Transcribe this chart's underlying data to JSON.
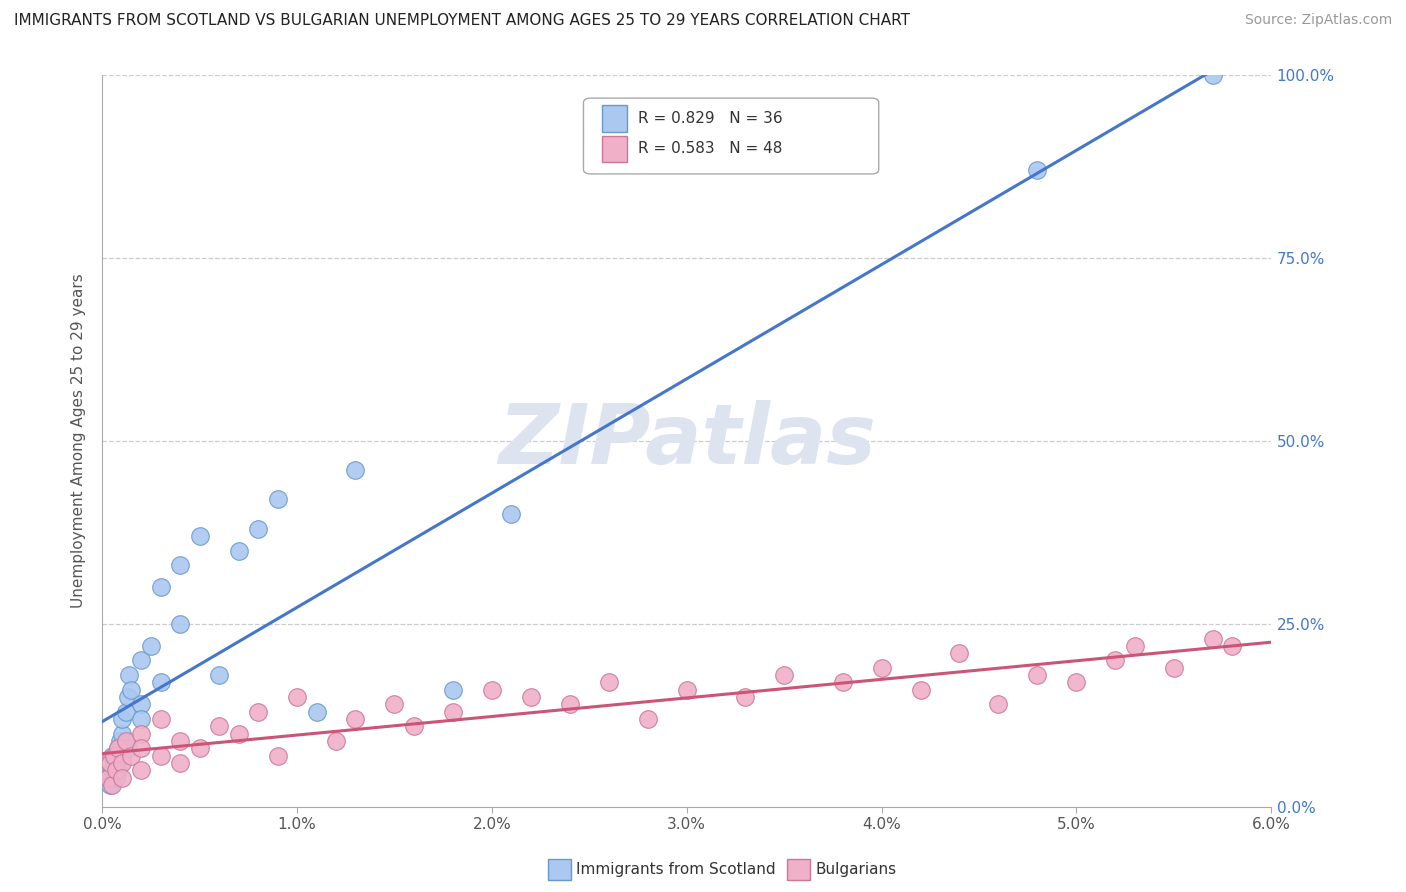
{
  "title": "IMMIGRANTS FROM SCOTLAND VS BULGARIAN UNEMPLOYMENT AMONG AGES 25 TO 29 YEARS CORRELATION CHART",
  "source": "Source: ZipAtlas.com",
  "ylabel": "Unemployment Among Ages 25 to 29 years",
  "xlim": [
    0.0,
    0.06
  ],
  "ylim": [
    0.0,
    1.0
  ],
  "xtick_vals": [
    0.0,
    0.01,
    0.02,
    0.03,
    0.04,
    0.05,
    0.06
  ],
  "xtick_labels": [
    "0.0%",
    "1.0%",
    "2.0%",
    "3.0%",
    "4.0%",
    "5.0%",
    "6.0%"
  ],
  "ytick_vals": [
    0.0,
    0.25,
    0.5,
    0.75,
    1.0
  ],
  "ytick_labels": [
    "0.0%",
    "25.0%",
    "50.0%",
    "75.0%",
    "100.0%"
  ],
  "series1_color": "#aac8f0",
  "series1_edge": "#6699cc",
  "series2_color": "#f0b0c8",
  "series2_edge": "#cc7799",
  "line1_color": "#4477cc",
  "line2_color": "#cc5577",
  "watermark": "ZIPatlas",
  "watermark_color": "#dde4f0",
  "legend1_label": "R = 0.829   N = 36",
  "legend2_label": "R = 0.583   N = 48",
  "legend_label1": "Immigrants from Scotland",
  "legend_label2": "Bulgarians",
  "scotland_x": [
    0.0003,
    0.0004,
    0.0005,
    0.0005,
    0.0006,
    0.0007,
    0.0008,
    0.0008,
    0.0009,
    0.001,
    0.001,
    0.001,
    0.0012,
    0.0013,
    0.0013,
    0.0014,
    0.0015,
    0.002,
    0.002,
    0.002,
    0.0025,
    0.003,
    0.003,
    0.004,
    0.004,
    0.005,
    0.006,
    0.007,
    0.008,
    0.009,
    0.011,
    0.013,
    0.018,
    0.021,
    0.048,
    0.057
  ],
  "scotland_y": [
    0.04,
    0.03,
    0.05,
    0.07,
    0.06,
    0.04,
    0.08,
    0.05,
    0.09,
    0.07,
    0.1,
    0.12,
    0.13,
    0.08,
    0.15,
    0.18,
    0.16,
    0.14,
    0.2,
    0.12,
    0.22,
    0.17,
    0.3,
    0.25,
    0.33,
    0.37,
    0.18,
    0.35,
    0.38,
    0.42,
    0.13,
    0.46,
    0.16,
    0.4,
    0.87,
    1.0
  ],
  "bulgarian_x": [
    0.0003,
    0.0004,
    0.0005,
    0.0006,
    0.0007,
    0.0008,
    0.001,
    0.001,
    0.0012,
    0.0015,
    0.002,
    0.002,
    0.002,
    0.003,
    0.003,
    0.004,
    0.004,
    0.005,
    0.006,
    0.007,
    0.008,
    0.009,
    0.01,
    0.012,
    0.013,
    0.015,
    0.016,
    0.018,
    0.02,
    0.022,
    0.024,
    0.026,
    0.028,
    0.03,
    0.033,
    0.035,
    0.038,
    0.04,
    0.042,
    0.044,
    0.046,
    0.048,
    0.05,
    0.052,
    0.053,
    0.055,
    0.057,
    0.058
  ],
  "bulgarian_y": [
    0.04,
    0.06,
    0.03,
    0.07,
    0.05,
    0.08,
    0.06,
    0.04,
    0.09,
    0.07,
    0.05,
    0.1,
    0.08,
    0.07,
    0.12,
    0.09,
    0.06,
    0.08,
    0.11,
    0.1,
    0.13,
    0.07,
    0.15,
    0.09,
    0.12,
    0.14,
    0.11,
    0.13,
    0.16,
    0.15,
    0.14,
    0.17,
    0.12,
    0.16,
    0.15,
    0.18,
    0.17,
    0.19,
    0.16,
    0.21,
    0.14,
    0.18,
    0.17,
    0.2,
    0.22,
    0.19,
    0.23,
    0.22
  ]
}
